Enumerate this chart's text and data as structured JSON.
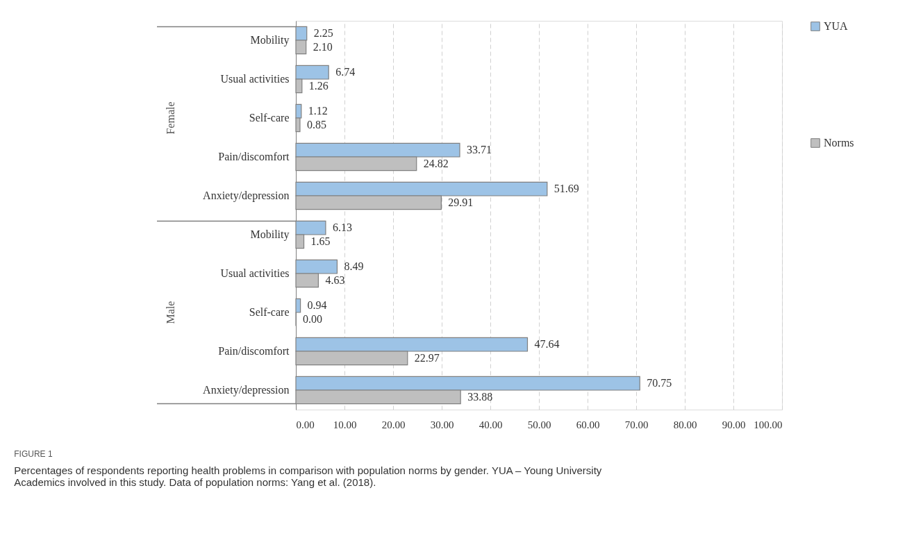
{
  "chart_data": {
    "type": "bar",
    "orientation": "horizontal",
    "title": "FIGURE 1",
    "subtitle": "Percentages of respondents reporting health problems in comparison with population norms by gender. YUA – Young University Academics involved in this study. Data of population norms: Yang et al. (2018).",
    "annotations": [
      "Female",
      "Male"
    ],
    "categories": [
      "Mobility",
      "Usual activities",
      "Self-care",
      "Pain/discomfort",
      "Anxiety/depression",
      "Mobility",
      "Usual activities",
      "Self-care",
      "Pain/discomfort",
      "Anxiety/depression"
    ],
    "series": [
      {
        "name": "YUA",
        "color": "#9dc3e6",
        "values": [
          2.25,
          6.74,
          1.12,
          33.71,
          51.69,
          6.13,
          8.49,
          0.94,
          47.64,
          70.75
        ],
        "value_labels": [
          "2.25",
          "6.74",
          "1.12",
          "33.71",
          "51.69",
          "6.13",
          "8.49",
          "0.94",
          "47.64",
          "70.75"
        ]
      },
      {
        "name": "Norms",
        "color": "#bfbfbf",
        "values": [
          2.1,
          1.26,
          0.85,
          24.82,
          29.91,
          1.65,
          4.63,
          0.0,
          22.97,
          33.88
        ],
        "value_labels": [
          "2.10",
          "1.26",
          "0.85",
          "24.82",
          "29.91",
          "1.65",
          "4.63",
          "0.00",
          "22.97",
          "33.88"
        ]
      }
    ],
    "xlim": [
      0,
      100
    ],
    "xticks": [
      {
        "value": 0,
        "label": "0.00"
      },
      {
        "value": 10,
        "label": "10.00"
      },
      {
        "value": 20,
        "label": "20.00"
      },
      {
        "value": 30,
        "label": "30.00"
      },
      {
        "value": 40,
        "label": "40.00"
      },
      {
        "value": 50,
        "label": "50.00"
      },
      {
        "value": 60,
        "label": "60.00"
      },
      {
        "value": 70,
        "label": "70.00"
      },
      {
        "value": 80,
        "label": "80.00"
      },
      {
        "value": 90,
        "label": "90.00"
      },
      {
        "value": 100,
        "label": "100.00"
      }
    ],
    "grid": "x",
    "legend": "right"
  }
}
